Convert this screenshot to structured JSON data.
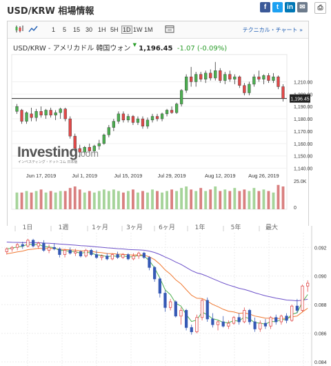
{
  "header": {
    "title": "USD/KRW 相場情報",
    "share": [
      "f",
      "t",
      "in",
      "✉",
      "⎙"
    ]
  },
  "toolbar": {
    "buttons": [
      "1",
      "5",
      "15",
      "30",
      "1H",
      "5H",
      "1D",
      "1W",
      "1M"
    ],
    "selected": "1D",
    "technical_link": "テクニカル・チャート »"
  },
  "quote": {
    "name": "USD/KRW - アメリカドル 韓国ウォン",
    "price": "1,196.45",
    "change": "-1.07",
    "change_pct": "(-0.09%)",
    "up_color": "#2a9d2a",
    "down_color": "#c83232"
  },
  "logo": {
    "text": "Investing",
    "suffix": ".com",
    "subtitle": "インベスティング・ドットコム 日本版"
  },
  "chart_data": [
    {
      "type": "candlestick",
      "x_labels": [
        "Jun 17, 2019",
        "Jul 1, 2019",
        "Jul 15, 2019",
        "Jul 29, 2019",
        "Aug 12, 2019",
        "Aug 26, 2019"
      ],
      "y_ticks": [
        "1,210.00",
        "1,200.00",
        "1,190.00",
        "1,180.00",
        "1,170.00",
        "1,160.00",
        "1,150.00",
        "1,140.00"
      ],
      "ylim": [
        1137,
        1232
      ],
      "current_price_label": "1,196.45",
      "current_price": 1196.45,
      "volume_label": "25.0K",
      "volume_zero_label": "0",
      "colors": {
        "up": "#4caf50",
        "down": "#e04848",
        "vol_up": "#a6d49a",
        "vol_down": "#d98080"
      },
      "ohlc": [
        [
          1186.0,
          1192.0,
          1184.0,
          1190.0
        ],
        [
          1187.0,
          1188.0,
          1176.0,
          1178.0
        ],
        [
          1178.0,
          1186.0,
          1176.0,
          1185.0
        ],
        [
          1184.0,
          1189.0,
          1178.0,
          1181.0
        ],
        [
          1181.0,
          1188.0,
          1178.0,
          1186.0
        ],
        [
          1186.0,
          1190.0,
          1181.0,
          1183.0
        ],
        [
          1183.0,
          1188.0,
          1180.0,
          1187.0
        ],
        [
          1187.0,
          1189.0,
          1181.0,
          1183.0
        ],
        [
          1183.0,
          1187.0,
          1179.0,
          1185.0
        ],
        [
          1185.0,
          1189.0,
          1180.0,
          1188.0
        ],
        [
          1188.0,
          1189.0,
          1178.0,
          1180.0
        ],
        [
          1180.0,
          1182.0,
          1164.0,
          1166.0
        ],
        [
          1166.0,
          1168.0,
          1154.0,
          1156.0
        ],
        [
          1156.0,
          1159.0,
          1149.0,
          1153.0
        ],
        [
          1153.0,
          1158.0,
          1151.0,
          1157.0
        ],
        [
          1157.0,
          1160.0,
          1152.0,
          1154.0
        ],
        [
          1154.0,
          1159.0,
          1152.0,
          1158.0
        ],
        [
          1158.0,
          1163.0,
          1155.0,
          1160.0
        ],
        [
          1160.0,
          1168.0,
          1159.0,
          1167.0
        ],
        [
          1167.0,
          1175.0,
          1165.0,
          1173.0
        ],
        [
          1173.0,
          1180.0,
          1170.0,
          1178.0
        ],
        [
          1178.0,
          1186.0,
          1176.0,
          1184.0
        ],
        [
          1184.0,
          1186.0,
          1177.0,
          1179.0
        ],
        [
          1179.0,
          1184.0,
          1177.0,
          1182.0
        ],
        [
          1182.0,
          1183.0,
          1175.0,
          1177.0
        ],
        [
          1177.0,
          1182.0,
          1175.0,
          1180.0
        ],
        [
          1180.0,
          1182.0,
          1172.0,
          1174.0
        ],
        [
          1174.0,
          1181.0,
          1172.0,
          1179.0
        ],
        [
          1179.0,
          1184.0,
          1177.0,
          1182.0
        ],
        [
          1182.0,
          1184.0,
          1178.0,
          1180.0
        ],
        [
          1180.0,
          1185.0,
          1178.0,
          1184.0
        ],
        [
          1184.0,
          1188.0,
          1182.0,
          1187.0
        ],
        [
          1187.0,
          1190.0,
          1184.0,
          1185.0
        ],
        [
          1185.0,
          1193.0,
          1184.0,
          1192.0
        ],
        [
          1192.0,
          1204.0,
          1190.0,
          1203.0
        ],
        [
          1203.0,
          1216.0,
          1201.0,
          1214.0
        ],
        [
          1214.0,
          1222.0,
          1206.0,
          1210.0
        ],
        [
          1210.0,
          1218.0,
          1206.0,
          1216.0
        ],
        [
          1216.0,
          1218.0,
          1210.0,
          1212.0
        ],
        [
          1212.0,
          1219.0,
          1209.0,
          1217.0
        ],
        [
          1217.0,
          1220.0,
          1211.0,
          1213.0
        ],
        [
          1213.0,
          1226.0,
          1211.0,
          1219.0
        ],
        [
          1219.0,
          1221.0,
          1209.0,
          1211.0
        ],
        [
          1211.0,
          1218.0,
          1208.0,
          1216.0
        ],
        [
          1216.0,
          1219.0,
          1210.0,
          1212.0
        ],
        [
          1212.0,
          1216.0,
          1208.0,
          1214.0
        ],
        [
          1214.0,
          1215.0,
          1205.0,
          1207.0
        ],
        [
          1207.0,
          1209.0,
          1199.0,
          1201.0
        ],
        [
          1201.0,
          1210.0,
          1199.0,
          1208.0
        ],
        [
          1208.0,
          1216.0,
          1206.0,
          1214.0
        ],
        [
          1214.0,
          1219.0,
          1210.0,
          1212.0
        ],
        [
          1212.0,
          1216.0,
          1208.0,
          1215.0
        ],
        [
          1215.0,
          1217.0,
          1209.0,
          1211.0
        ],
        [
          1211.0,
          1217.0,
          1209.0,
          1214.0
        ],
        [
          1214.0,
          1215.0,
          1204.0,
          1206.0
        ],
        [
          1206.0,
          1208.0,
          1194.0,
          1196.5
        ]
      ],
      "volume_fraction": [
        0.55,
        0.55,
        0.6,
        0.55,
        0.6,
        0.65,
        0.55,
        0.6,
        0.55,
        0.6,
        0.6,
        0.7,
        0.75,
        0.65,
        0.55,
        0.6,
        0.55,
        0.6,
        0.65,
        0.6,
        0.65,
        0.6,
        0.55,
        0.6,
        0.65,
        0.55,
        0.6,
        0.55,
        0.65,
        0.6,
        0.55,
        0.6,
        0.65,
        0.6,
        0.7,
        0.75,
        0.65,
        0.6,
        0.7,
        0.6,
        0.65,
        0.75,
        0.6,
        0.65,
        0.6,
        0.7,
        0.6,
        0.65,
        0.6,
        0.7,
        0.6,
        0.65,
        0.6,
        0.55,
        0.8,
        0.75
      ]
    },
    {
      "type": "candlestick",
      "timeframe_tabs": [
        "1日",
        "1週",
        "1ヶ月",
        "3ヶ月",
        "6ヶ月",
        "1年",
        "5年",
        "最大"
      ],
      "y_ticks": [
        "0.092",
        "0.090",
        "0.088",
        "0.086",
        "0.084"
      ],
      "ylim": [
        0.084,
        0.0938
      ],
      "colors": {
        "up": "#e04848",
        "down": "#3559b5",
        "ma_fast": "#4caf50",
        "ma_mid": "#f07830",
        "ma_slow": "#6b4fc9"
      },
      "ohlc": [
        [
          0.0917,
          0.092,
          0.0915,
          0.0919
        ],
        [
          0.0919,
          0.0921,
          0.0917,
          0.092
        ],
        [
          0.092,
          0.0923,
          0.0918,
          0.0922
        ],
        [
          0.0922,
          0.0924,
          0.0919,
          0.0921
        ],
        [
          0.0921,
          0.0926,
          0.092,
          0.0925
        ],
        [
          0.0925,
          0.0926,
          0.092,
          0.0921
        ],
        [
          0.0921,
          0.0924,
          0.0919,
          0.0923
        ],
        [
          0.0923,
          0.0925,
          0.0917,
          0.0918
        ],
        [
          0.0918,
          0.0922,
          0.0916,
          0.092
        ],
        [
          0.092,
          0.0923,
          0.0918,
          0.0919
        ],
        [
          0.0919,
          0.092,
          0.0913,
          0.0915
        ],
        [
          0.0915,
          0.0919,
          0.0913,
          0.0918
        ],
        [
          0.0918,
          0.092,
          0.0915,
          0.0916
        ],
        [
          0.0916,
          0.0919,
          0.0914,
          0.0917
        ],
        [
          0.0917,
          0.0918,
          0.0913,
          0.0914
        ],
        [
          0.0914,
          0.0919,
          0.0913,
          0.0918
        ],
        [
          0.0918,
          0.0919,
          0.0914,
          0.0915
        ],
        [
          0.0915,
          0.0918,
          0.0912,
          0.0913
        ],
        [
          0.0913,
          0.0915,
          0.0911,
          0.0914
        ],
        [
          0.0914,
          0.0916,
          0.0911,
          0.0912
        ],
        [
          0.0912,
          0.0916,
          0.0911,
          0.0915
        ],
        [
          0.0915,
          0.0917,
          0.0912,
          0.0913
        ],
        [
          0.0913,
          0.0916,
          0.0912,
          0.0915
        ],
        [
          0.0915,
          0.0916,
          0.0911,
          0.0912
        ],
        [
          0.0912,
          0.0916,
          0.0911,
          0.0914
        ],
        [
          0.0914,
          0.0917,
          0.0912,
          0.0916
        ],
        [
          0.0916,
          0.0917,
          0.0912,
          0.0913
        ],
        [
          0.0913,
          0.0914,
          0.0904,
          0.0906
        ],
        [
          0.0906,
          0.0907,
          0.0896,
          0.0898
        ],
        [
          0.0898,
          0.0899,
          0.0885,
          0.0888
        ],
        [
          0.0888,
          0.089,
          0.0875,
          0.0878
        ],
        [
          0.0878,
          0.0884,
          0.0876,
          0.0882
        ],
        [
          0.0882,
          0.0883,
          0.0871,
          0.0872
        ],
        [
          0.0872,
          0.0878,
          0.0866,
          0.0876
        ],
        [
          0.0876,
          0.0877,
          0.0862,
          0.0864
        ],
        [
          0.0864,
          0.0866,
          0.0859,
          0.0861
        ],
        [
          0.0861,
          0.0873,
          0.086,
          0.0871
        ],
        [
          0.0871,
          0.0884,
          0.0869,
          0.0883
        ],
        [
          0.0883,
          0.0885,
          0.0868,
          0.087
        ],
        [
          0.087,
          0.0874,
          0.0864,
          0.0866
        ],
        [
          0.0866,
          0.0869,
          0.0862,
          0.0868
        ],
        [
          0.0868,
          0.0872,
          0.0864,
          0.0865
        ],
        [
          0.0865,
          0.0869,
          0.0863,
          0.0867
        ],
        [
          0.0867,
          0.0872,
          0.0866,
          0.0871
        ],
        [
          0.0871,
          0.0874,
          0.0866,
          0.0868
        ],
        [
          0.0868,
          0.0878,
          0.0867,
          0.0876
        ],
        [
          0.0876,
          0.0877,
          0.0866,
          0.0868
        ],
        [
          0.0868,
          0.0871,
          0.0861,
          0.0863
        ],
        [
          0.0863,
          0.0869,
          0.0861,
          0.0867
        ],
        [
          0.0867,
          0.087,
          0.0863,
          0.0865
        ],
        [
          0.0865,
          0.0872,
          0.0863,
          0.0871
        ],
        [
          0.0871,
          0.0873,
          0.0866,
          0.0868
        ],
        [
          0.0868,
          0.0873,
          0.0866,
          0.0872
        ],
        [
          0.0872,
          0.0874,
          0.0867,
          0.0869
        ],
        [
          0.0869,
          0.088,
          0.0868,
          0.0879
        ],
        [
          0.0879,
          0.0884,
          0.0874,
          0.0876
        ],
        [
          0.0876,
          0.0894,
          0.0875,
          0.0893
        ],
        [
          0.0893,
          0.0897,
          0.0889,
          0.0895
        ]
      ]
    }
  ]
}
